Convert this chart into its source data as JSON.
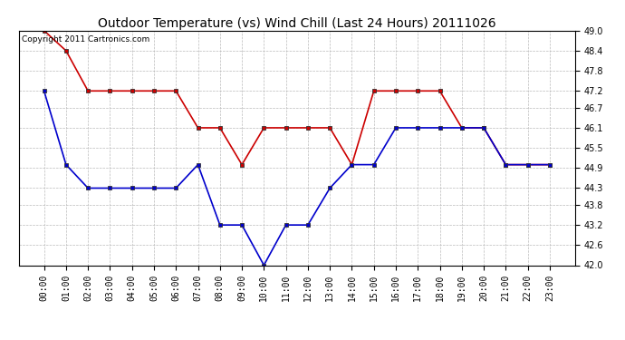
{
  "title": "Outdoor Temperature (vs) Wind Chill (Last 24 Hours) 20111026",
  "copyright_text": "Copyright 2011 Cartronics.com",
  "x_labels": [
    "00:00",
    "01:00",
    "02:00",
    "03:00",
    "04:00",
    "05:00",
    "06:00",
    "07:00",
    "08:00",
    "09:00",
    "10:00",
    "11:00",
    "12:00",
    "13:00",
    "14:00",
    "15:00",
    "16:00",
    "17:00",
    "18:00",
    "19:00",
    "20:00",
    "21:00",
    "22:00",
    "23:00"
  ],
  "red_data": [
    49.0,
    48.4,
    47.2,
    47.2,
    47.2,
    47.2,
    47.2,
    46.1,
    46.1,
    45.0,
    46.1,
    46.1,
    46.1,
    46.1,
    45.0,
    47.2,
    47.2,
    47.2,
    47.2,
    46.1,
    46.1,
    45.0,
    45.0,
    45.0
  ],
  "blue_data": [
    47.2,
    45.0,
    44.3,
    44.3,
    44.3,
    44.3,
    44.3,
    45.0,
    43.2,
    43.2,
    42.0,
    43.2,
    43.2,
    44.3,
    45.0,
    45.0,
    46.1,
    46.1,
    46.1,
    46.1,
    46.1,
    45.0,
    45.0,
    45.0
  ],
  "ylim_min": 42.0,
  "ylim_max": 49.0,
  "yticks": [
    42.0,
    42.6,
    43.2,
    43.8,
    44.3,
    44.9,
    45.5,
    46.1,
    46.7,
    47.2,
    47.8,
    48.4,
    49.0
  ],
  "red_color": "#cc0000",
  "blue_color": "#0000cc",
  "bg_color": "#ffffff",
  "grid_color": "#bbbbbb",
  "title_fontsize": 10,
  "tick_fontsize": 7,
  "copyright_fontsize": 6.5
}
